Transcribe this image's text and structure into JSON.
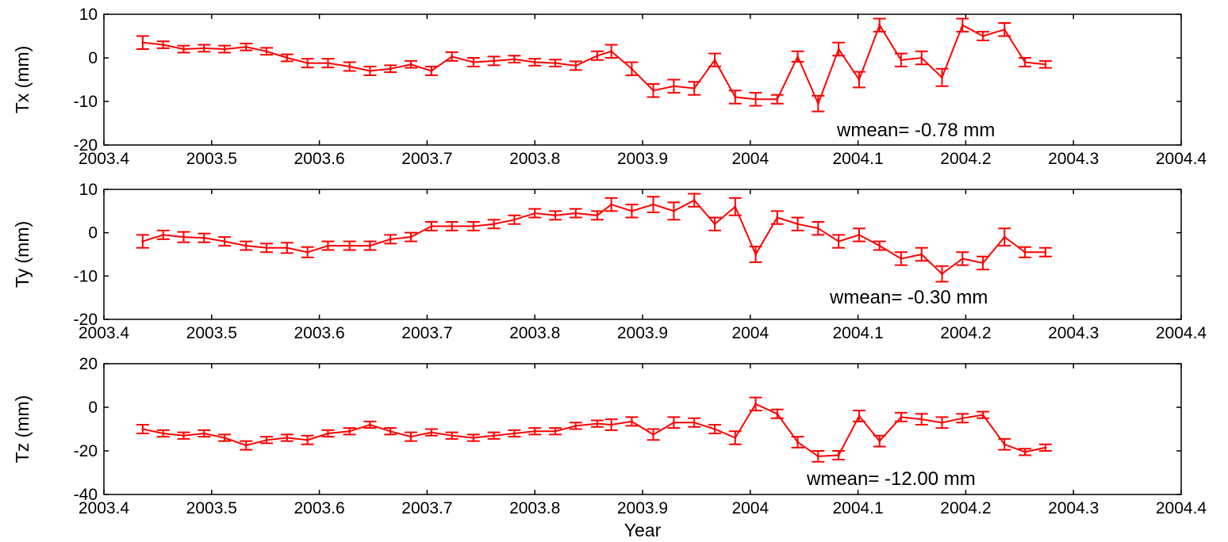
{
  "chart_data": [
    {
      "type": "line",
      "ylabel": "Tx (mm)",
      "xlabel": "",
      "annotation": "wmean= -0.78 mm",
      "xlim": [
        2003.4,
        2004.4
      ],
      "ylim": [
        -20,
        10
      ],
      "xticks": [
        "2003.4",
        "2003.5",
        "2003.6",
        "2003.7",
        "2003.8",
        "2003.9",
        "2004",
        "2004.1",
        "2004.2",
        "2004.3",
        "2004.4"
      ],
      "yticks": [
        "-20",
        "-10",
        "0",
        "10"
      ],
      "grid": false,
      "color": "#ff0000",
      "series": [
        {
          "x": [
            2003.436,
            2003.455,
            2003.474,
            2003.493,
            2003.512,
            2003.532,
            2003.551,
            2003.57,
            2003.589,
            2003.608,
            2003.628,
            2003.647,
            2003.666,
            2003.685,
            2003.704,
            2003.723,
            2003.743,
            2003.762,
            2003.781,
            2003.8,
            2003.819,
            2003.838,
            2003.858,
            2003.871,
            2003.89,
            2003.91,
            2003.929,
            2003.948,
            2003.967,
            2003.986,
            2004.005,
            2004.025,
            2004.044,
            2004.063,
            2004.082,
            2004.101,
            2004.12,
            2004.14,
            2004.159,
            2004.178,
            2004.197,
            2004.216,
            2004.236,
            2004.255,
            2004.274
          ],
          "y": [
            3.5,
            3.0,
            2.0,
            2.2,
            2.0,
            2.5,
            1.5,
            0.0,
            -1.2,
            -1.2,
            -2.0,
            -3.0,
            -2.5,
            -1.5,
            -3.0,
            0.3,
            -1.0,
            -0.7,
            -0.3,
            -1.0,
            -1.2,
            -1.8,
            0.5,
            1.5,
            -2.5,
            -7.5,
            -6.5,
            -7.0,
            -0.5,
            -9.0,
            -9.5,
            -9.5,
            0.3,
            -10.5,
            2.0,
            -5.0,
            7.5,
            -0.5,
            0.0,
            -4.5,
            7.5,
            5.0,
            6.5,
            -1.0,
            -1.5
          ],
          "err": [
            1.5,
            0.8,
            0.8,
            0.8,
            0.8,
            0.8,
            0.8,
            0.8,
            1.0,
            1.0,
            1.0,
            1.0,
            0.8,
            0.8,
            1.0,
            1.0,
            1.0,
            1.0,
            0.8,
            0.8,
            0.8,
            1.0,
            1.0,
            1.5,
            1.5,
            1.5,
            1.5,
            1.5,
            1.5,
            1.5,
            1.5,
            1.0,
            1.2,
            1.8,
            1.5,
            1.8,
            1.5,
            1.5,
            1.5,
            2.0,
            1.5,
            1.0,
            1.5,
            1.0,
            0.8
          ]
        }
      ]
    },
    {
      "type": "line",
      "ylabel": "Ty (mm)",
      "xlabel": "",
      "annotation": "wmean= -0.30 mm",
      "xlim": [
        2003.4,
        2004.4
      ],
      "ylim": [
        -20,
        10
      ],
      "xticks": [
        "2003.4",
        "2003.5",
        "2003.6",
        "2003.7",
        "2003.8",
        "2003.9",
        "2004",
        "2004.1",
        "2004.2",
        "2004.3",
        "2004.4"
      ],
      "yticks": [
        "-20",
        "-10",
        "0",
        "10"
      ],
      "grid": false,
      "color": "#ff0000",
      "series": [
        {
          "x": [
            2003.436,
            2003.455,
            2003.474,
            2003.493,
            2003.512,
            2003.532,
            2003.551,
            2003.57,
            2003.589,
            2003.608,
            2003.628,
            2003.647,
            2003.666,
            2003.685,
            2003.704,
            2003.723,
            2003.743,
            2003.762,
            2003.781,
            2003.8,
            2003.819,
            2003.838,
            2003.858,
            2003.871,
            2003.89,
            2003.91,
            2003.929,
            2003.948,
            2003.967,
            2003.986,
            2004.005,
            2004.025,
            2004.044,
            2004.063,
            2004.082,
            2004.101,
            2004.12,
            2004.14,
            2004.159,
            2004.178,
            2004.197,
            2004.216,
            2004.236,
            2004.255,
            2004.274
          ],
          "y": [
            -2.0,
            -0.5,
            -1.0,
            -1.2,
            -2.0,
            -3.0,
            -3.5,
            -3.5,
            -4.5,
            -3.0,
            -3.0,
            -3.0,
            -1.5,
            -1.0,
            1.5,
            1.5,
            1.5,
            2.0,
            3.0,
            4.5,
            4.0,
            4.5,
            4.0,
            6.5,
            5.0,
            6.5,
            5.0,
            7.5,
            2.0,
            6.0,
            -5.0,
            3.5,
            2.0,
            1.0,
            -2.0,
            -0.5,
            -3.0,
            -6.0,
            -5.0,
            -9.5,
            -6.0,
            -7.0,
            -1.0,
            -4.5,
            -4.5
          ],
          "err": [
            1.5,
            1.0,
            1.2,
            1.0,
            1.0,
            1.0,
            1.0,
            1.2,
            1.2,
            1.0,
            1.0,
            1.0,
            1.0,
            1.0,
            1.0,
            1.0,
            1.0,
            1.0,
            1.0,
            1.0,
            1.0,
            1.0,
            1.0,
            1.5,
            1.5,
            1.8,
            2.0,
            1.5,
            1.5,
            2.0,
            1.8,
            1.5,
            1.5,
            1.5,
            1.5,
            1.5,
            1.0,
            1.5,
            1.5,
            1.8,
            1.5,
            1.5,
            2.0,
            1.2,
            1.0
          ]
        }
      ]
    },
    {
      "type": "line",
      "ylabel": "Tz (mm)",
      "xlabel": "Year",
      "annotation": "wmean= -12.00 mm",
      "xlim": [
        2003.4,
        2004.4
      ],
      "ylim": [
        -40,
        20
      ],
      "xticks": [
        "2003.4",
        "2003.5",
        "2003.6",
        "2003.7",
        "2003.8",
        "2003.9",
        "2004",
        "2004.1",
        "2004.2",
        "2004.3",
        "2004.4"
      ],
      "yticks": [
        "-40",
        "-20",
        "0",
        "20"
      ],
      "grid": false,
      "color": "#ff0000",
      "series": [
        {
          "x": [
            2003.436,
            2003.455,
            2003.474,
            2003.493,
            2003.512,
            2003.532,
            2003.551,
            2003.57,
            2003.589,
            2003.608,
            2003.628,
            2003.647,
            2003.666,
            2003.685,
            2003.704,
            2003.723,
            2003.743,
            2003.762,
            2003.781,
            2003.8,
            2003.819,
            2003.838,
            2003.858,
            2003.871,
            2003.89,
            2003.91,
            2003.929,
            2003.948,
            2003.967,
            2003.986,
            2004.005,
            2004.025,
            2004.044,
            2004.063,
            2004.082,
            2004.101,
            2004.12,
            2004.14,
            2004.159,
            2004.178,
            2004.197,
            2004.216,
            2004.236,
            2004.255,
            2004.274
          ],
          "y": [
            -10,
            -12,
            -13,
            -12,
            -14,
            -17.5,
            -15,
            -14,
            -15,
            -12,
            -11,
            -8,
            -11,
            -13.5,
            -11.5,
            -13,
            -14,
            -13,
            -12,
            -11,
            -11,
            -8.5,
            -7.5,
            -8,
            -6.5,
            -12.5,
            -7,
            -7,
            -10,
            -14,
            1.5,
            -3,
            -16,
            -22.5,
            -22,
            -4,
            -15.5,
            -4.5,
            -5.5,
            -7,
            -5,
            -3.5,
            -17,
            -20.5,
            -18.5
          ],
          "err": [
            2.0,
            1.5,
            1.5,
            1.5,
            1.5,
            2.0,
            1.5,
            1.5,
            2.0,
            1.5,
            1.5,
            1.5,
            1.5,
            2.0,
            1.5,
            1.5,
            1.5,
            1.5,
            1.5,
            1.5,
            1.5,
            1.5,
            1.5,
            2.5,
            2.0,
            2.5,
            2.5,
            2.0,
            2.0,
            3.0,
            3.0,
            2.0,
            2.5,
            2.5,
            2.0,
            2.5,
            2.5,
            2.0,
            2.5,
            2.5,
            2.0,
            1.5,
            2.5,
            1.5,
            1.5
          ]
        }
      ]
    }
  ]
}
